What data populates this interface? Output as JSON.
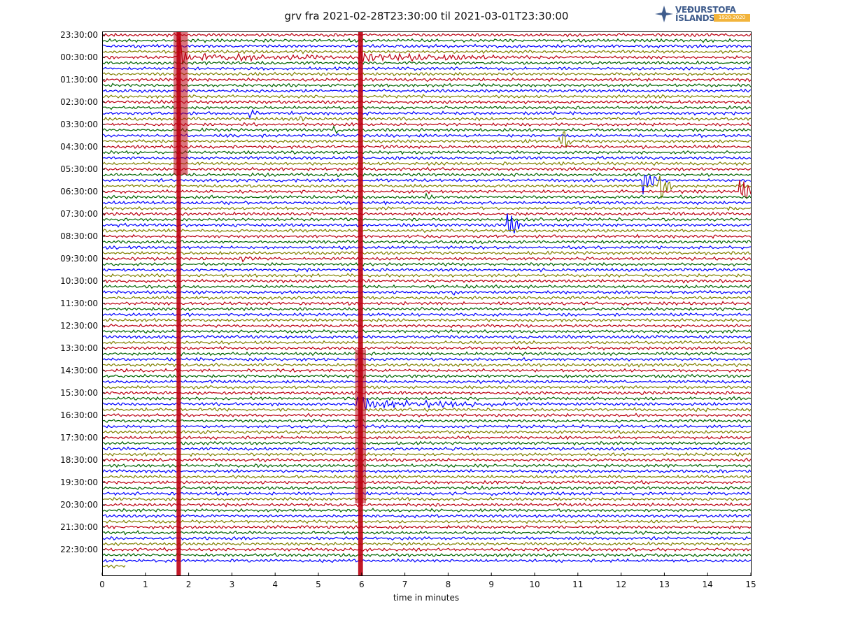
{
  "chart_data": {
    "type": "line",
    "title": "grv fra 2021-02-28T23:30:00 til 2021-03-01T23:30:00",
    "xlabel": "time in minutes",
    "ylabel": "",
    "xlim": [
      0,
      15
    ],
    "x_ticks": [
      "0",
      "1",
      "2",
      "3",
      "4",
      "5",
      "6",
      "7",
      "8",
      "9",
      "10",
      "11",
      "12",
      "13",
      "14",
      "15"
    ],
    "y_tick_labels": [
      "23:30:00",
      "00:30:00",
      "01:30:00",
      "02:30:00",
      "03:30:00",
      "04:30:00",
      "05:30:00",
      "06:30:00",
      "07:30:00",
      "08:30:00",
      "09:30:00",
      "10:30:00",
      "11:30:00",
      "12:30:00",
      "13:30:00",
      "14:30:00",
      "15:30:00",
      "16:30:00",
      "17:30:00",
      "18:30:00",
      "19:30:00",
      "20:30:00",
      "21:30:00",
      "22:30:00"
    ],
    "traces_per_hour": 4,
    "trace_colors": [
      "#bb0011",
      "#006400",
      "#0000ff",
      "#808000"
    ],
    "grid": false,
    "events": [
      {
        "trace": 4,
        "minute": 1.75,
        "magnitude": "large"
      },
      {
        "trace": 4,
        "minute": 5.95,
        "magnitude": "large"
      },
      {
        "trace": 66,
        "minute": 5.95,
        "magnitude": "large"
      },
      {
        "trace": 14,
        "minute": 3.45,
        "magnitude": "small"
      },
      {
        "trace": 15,
        "minute": 4.55,
        "magnitude": "small"
      },
      {
        "trace": 17,
        "minute": 5.4,
        "magnitude": "small"
      },
      {
        "trace": 19,
        "minute": 10.6,
        "magnitude": "medium"
      },
      {
        "trace": 26,
        "minute": 12.55,
        "magnitude": "medium"
      },
      {
        "trace": 27,
        "minute": 12.9,
        "magnitude": "medium"
      },
      {
        "trace": 28,
        "minute": 14.75,
        "magnitude": "medium"
      },
      {
        "trace": 29,
        "minute": 7.5,
        "magnitude": "small"
      },
      {
        "trace": 30,
        "minute": 6.55,
        "magnitude": "small"
      },
      {
        "trace": 34,
        "minute": 9.4,
        "magnitude": "medium"
      },
      {
        "trace": 40,
        "minute": 3.3,
        "magnitude": "small"
      },
      {
        "trace": 46,
        "minute": 8.15,
        "magnitude": "small"
      }
    ]
  },
  "logo": {
    "line1": "VEÐURSTOFA",
    "line2": "ÍSLANDS",
    "badge": "1920-2020",
    "mark_color": "#3f5c8c",
    "badge_color": "#f2b43c"
  }
}
